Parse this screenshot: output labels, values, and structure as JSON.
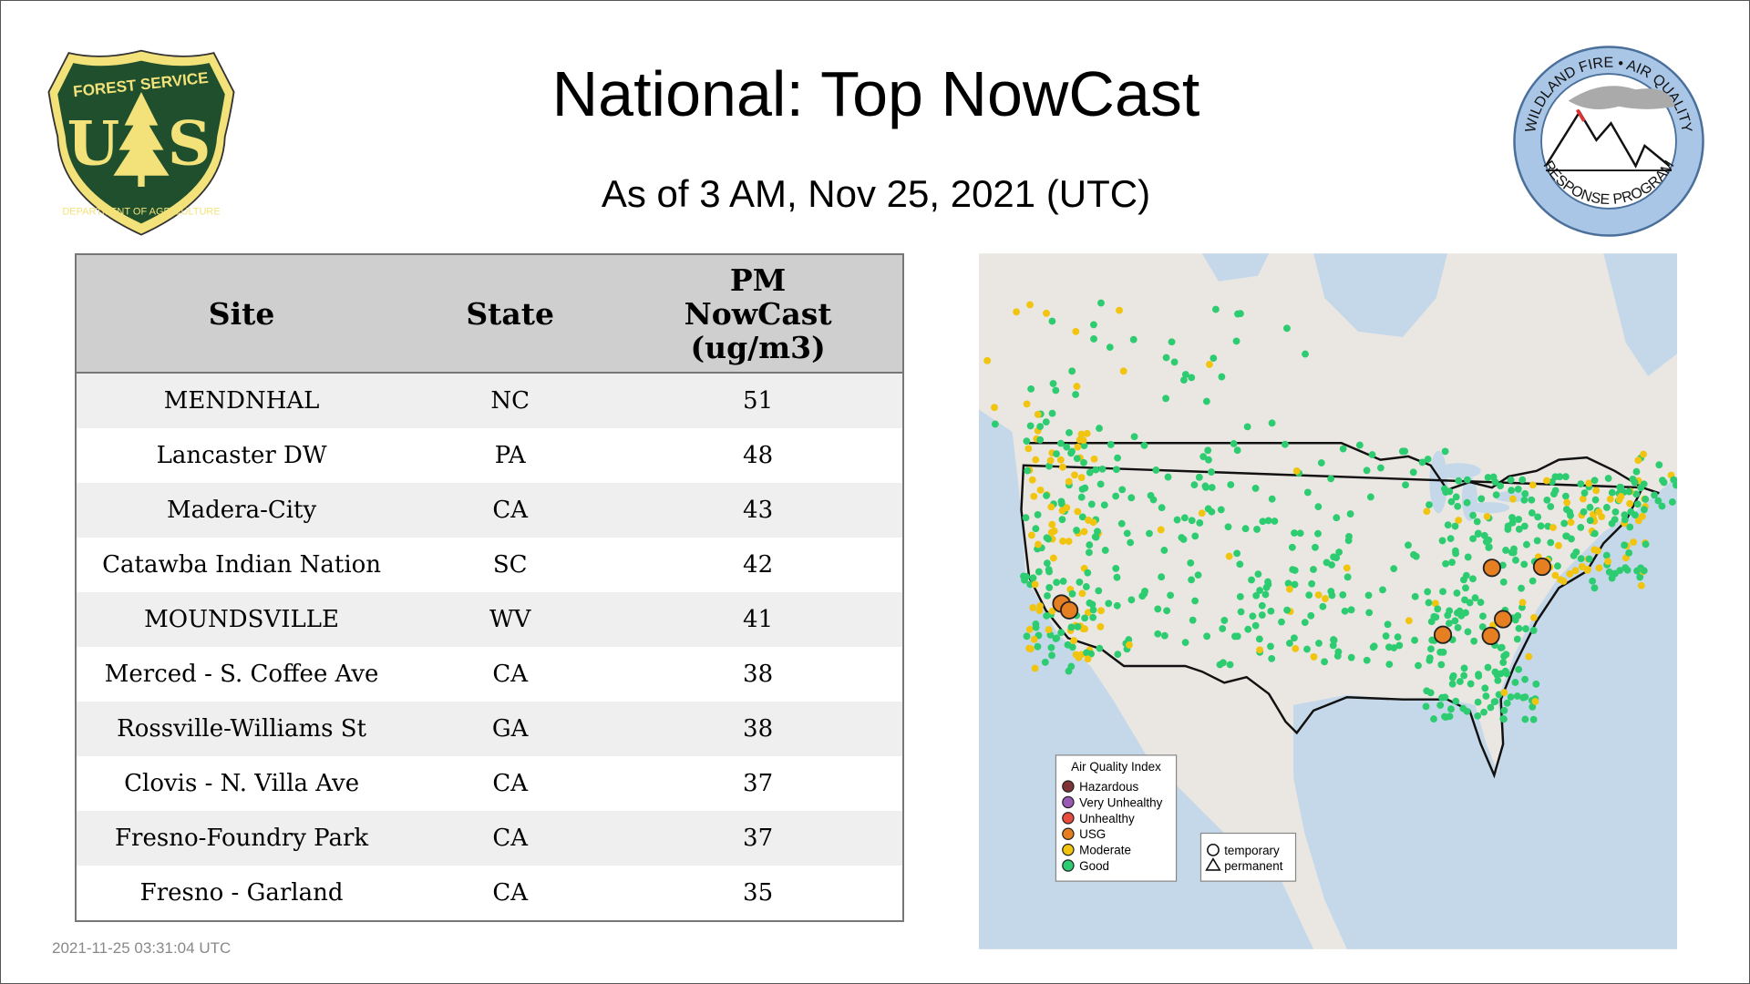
{
  "header": {
    "title": "National: Top NowCast",
    "subtitle": "As of  3 AM, Nov 25, 2021 (UTC)"
  },
  "logos": {
    "left": {
      "top": "FOREST SERVICE",
      "middle": "U S",
      "bottom": "DEPARTMENT OF AGRICULTURE"
    },
    "right": {
      "top": "WILDLAND FIRE • AIR QUALITY",
      "bottom": "RESPONSE PROGRAM"
    }
  },
  "table": {
    "headers": [
      "Site",
      "State",
      "PM NowCast (ug/m3)"
    ],
    "header_lines": [
      "PM",
      "NowCast",
      "(ug/m3)"
    ],
    "rows": [
      {
        "site": "MENDNHAL",
        "state": "NC",
        "value": "51"
      },
      {
        "site": "Lancaster DW",
        "state": "PA",
        "value": "48"
      },
      {
        "site": "Madera-City",
        "state": "CA",
        "value": "43"
      },
      {
        "site": "Catawba Indian Nation",
        "state": "SC",
        "value": "42"
      },
      {
        "site": "MOUNDSVILLE",
        "state": "WV",
        "value": "41"
      },
      {
        "site": "Merced - S. Coffee Ave",
        "state": "CA",
        "value": "38"
      },
      {
        "site": "Rossville-Williams St",
        "state": "GA",
        "value": "38"
      },
      {
        "site": "Clovis - N. Villa Ave",
        "state": "CA",
        "value": "37"
      },
      {
        "site": "Fresno-Foundry Park",
        "state": "CA",
        "value": "37"
      },
      {
        "site": "Fresno - Garland",
        "state": "CA",
        "value": "35"
      }
    ]
  },
  "map": {
    "legend": {
      "title": "Air Quality Index",
      "items": [
        {
          "label": "Hazardous",
          "color": "#7e3334"
        },
        {
          "label": "Very Unhealthy",
          "color": "#9b59b6"
        },
        {
          "label": "Unhealthy",
          "color": "#e74c3c"
        },
        {
          "label": "USG",
          "color": "#e67e22"
        },
        {
          "label": "Moderate",
          "color": "#f1c40f"
        },
        {
          "label": "Good",
          "color": "#2ecc71"
        }
      ]
    },
    "shape_legend": {
      "items": [
        {
          "label": "temporary",
          "shape": "circle"
        },
        {
          "label": "permanent",
          "shape": "triangle"
        }
      ]
    }
  },
  "footer": {
    "timestamp": "2021-11-25 03:31:04 UTC"
  }
}
